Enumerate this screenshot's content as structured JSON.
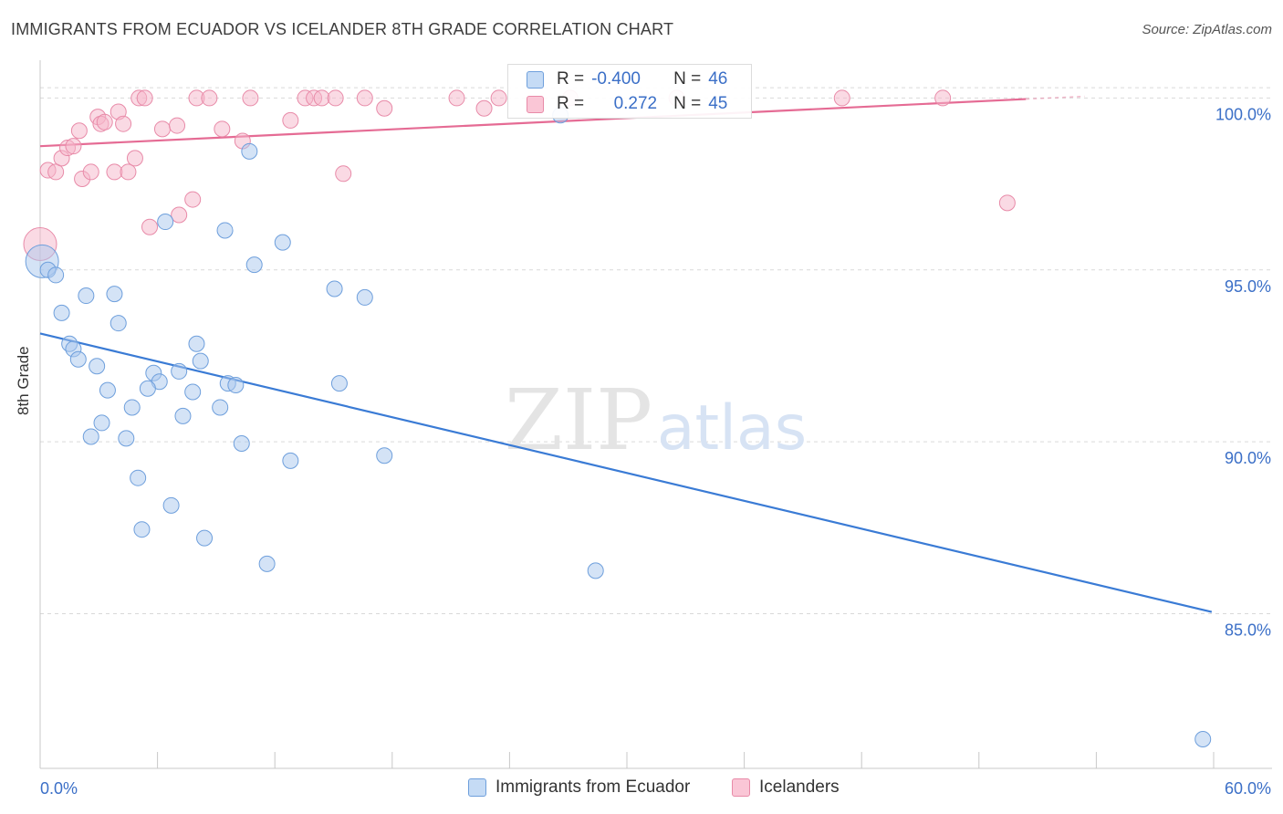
{
  "title": "IMMIGRANTS FROM ECUADOR VS ICELANDER 8TH GRADE CORRELATION CHART",
  "source": "Source: ZipAtlas.com",
  "watermark": {
    "zip": "ZIP",
    "atlas": "atlas"
  },
  "stats": {
    "series1": {
      "r_label": "R =",
      "r_value": "-0.400",
      "n_label": "N =",
      "n_value": "46"
    },
    "series2": {
      "r_label": "R =",
      "r_value": "0.272",
      "n_label": "N =",
      "n_value": "45"
    }
  },
  "legend": {
    "series1": "Immigrants from Ecuador",
    "series2": "Icelanders"
  },
  "colors": {
    "blue_fill": "#a9c7ee",
    "blue_stroke": "#6e9fdc",
    "blue_line": "#3a7bd5",
    "pink_fill": "#f5b6c9",
    "pink_stroke": "#e88aa8",
    "pink_line": "#e56b94",
    "grid": "#d9d9d9",
    "tick_text": "#3b6fc7"
  },
  "chart_data": {
    "type": "scatter",
    "title": "IMMIGRANTS FROM ECUADOR VS ICELANDER 8TH GRADE CORRELATION CHART",
    "xlabel": "",
    "ylabel": "8th Grade",
    "xlim": [
      0,
      60
    ],
    "ylim": [
      80.5,
      101.1
    ],
    "x_tick_labels": [
      "0.0%",
      "60.0%"
    ],
    "y_ticks": [
      85,
      90,
      95,
      100
    ],
    "y_tick_labels": [
      "85.0%",
      "90.0%",
      "95.0%",
      "100.0%"
    ],
    "series": [
      {
        "name": "Immigrants from Ecuador",
        "r": -0.4,
        "n": 46,
        "trend": {
          "x": [
            0,
            59.9
          ],
          "y": [
            93.15,
            85.05
          ]
        },
        "points": [
          {
            "x": 0.1,
            "y": 95.25,
            "big": true
          },
          {
            "x": 0.4,
            "y": 95.0
          },
          {
            "x": 0.8,
            "y": 94.85
          },
          {
            "x": 2.35,
            "y": 94.25
          },
          {
            "x": 3.8,
            "y": 94.3
          },
          {
            "x": 1.1,
            "y": 93.75
          },
          {
            "x": 4.0,
            "y": 93.45
          },
          {
            "x": 1.5,
            "y": 92.85
          },
          {
            "x": 1.7,
            "y": 92.7
          },
          {
            "x": 1.95,
            "y": 92.4
          },
          {
            "x": 2.9,
            "y": 92.2
          },
          {
            "x": 8.0,
            "y": 92.85
          },
          {
            "x": 8.2,
            "y": 92.35
          },
          {
            "x": 5.8,
            "y": 92.0
          },
          {
            "x": 7.1,
            "y": 92.05
          },
          {
            "x": 6.1,
            "y": 91.75
          },
          {
            "x": 5.5,
            "y": 91.55
          },
          {
            "x": 3.45,
            "y": 91.5
          },
          {
            "x": 7.8,
            "y": 91.45
          },
          {
            "x": 9.6,
            "y": 91.7
          },
          {
            "x": 10.0,
            "y": 91.65
          },
          {
            "x": 15.3,
            "y": 91.7
          },
          {
            "x": 4.7,
            "y": 91.0
          },
          {
            "x": 9.2,
            "y": 91.0
          },
          {
            "x": 7.3,
            "y": 90.75
          },
          {
            "x": 3.15,
            "y": 90.55
          },
          {
            "x": 2.6,
            "y": 90.15
          },
          {
            "x": 4.4,
            "y": 90.1
          },
          {
            "x": 10.3,
            "y": 89.95
          },
          {
            "x": 12.8,
            "y": 89.45
          },
          {
            "x": 17.6,
            "y": 89.6
          },
          {
            "x": 5.0,
            "y": 88.95
          },
          {
            "x": 6.7,
            "y": 88.15
          },
          {
            "x": 5.2,
            "y": 87.45
          },
          {
            "x": 8.4,
            "y": 87.2
          },
          {
            "x": 11.6,
            "y": 86.45
          },
          {
            "x": 28.4,
            "y": 86.25
          },
          {
            "x": 6.4,
            "y": 96.4
          },
          {
            "x": 9.45,
            "y": 96.15
          },
          {
            "x": 12.4,
            "y": 95.8
          },
          {
            "x": 10.95,
            "y": 95.15
          },
          {
            "x": 15.05,
            "y": 94.45
          },
          {
            "x": 16.6,
            "y": 94.2
          },
          {
            "x": 10.7,
            "y": 98.45
          },
          {
            "x": 26.6,
            "y": 99.5
          },
          {
            "x": 59.45,
            "y": 81.35
          }
        ]
      },
      {
        "name": "Icelanders",
        "r": 0.272,
        "n": 45,
        "trend": {
          "x": [
            0,
            50.4
          ],
          "y": [
            98.6,
            99.97
          ]
        },
        "points": [
          {
            "x": 0.0,
            "y": 95.75,
            "big": true
          },
          {
            "x": 0.4,
            "y": 97.9
          },
          {
            "x": 0.8,
            "y": 97.85
          },
          {
            "x": 1.1,
            "y": 98.25
          },
          {
            "x": 1.4,
            "y": 98.55
          },
          {
            "x": 1.7,
            "y": 98.6
          },
          {
            "x": 2.0,
            "y": 99.05
          },
          {
            "x": 2.15,
            "y": 97.65
          },
          {
            "x": 2.6,
            "y": 97.85
          },
          {
            "x": 2.95,
            "y": 99.45
          },
          {
            "x": 3.1,
            "y": 99.25
          },
          {
            "x": 3.3,
            "y": 99.3
          },
          {
            "x": 3.8,
            "y": 97.85
          },
          {
            "x": 4.0,
            "y": 99.6
          },
          {
            "x": 4.25,
            "y": 99.25
          },
          {
            "x": 4.5,
            "y": 97.85
          },
          {
            "x": 4.85,
            "y": 98.25
          },
          {
            "x": 5.05,
            "y": 100.0
          },
          {
            "x": 5.35,
            "y": 100.0
          },
          {
            "x": 5.6,
            "y": 96.25
          },
          {
            "x": 6.25,
            "y": 99.1
          },
          {
            "x": 7.0,
            "y": 99.2
          },
          {
            "x": 7.1,
            "y": 96.6
          },
          {
            "x": 7.8,
            "y": 97.05
          },
          {
            "x": 8.0,
            "y": 100.0
          },
          {
            "x": 8.65,
            "y": 100.0
          },
          {
            "x": 9.3,
            "y": 99.1
          },
          {
            "x": 10.35,
            "y": 98.75
          },
          {
            "x": 10.75,
            "y": 100.0
          },
          {
            "x": 12.8,
            "y": 99.35
          },
          {
            "x": 13.55,
            "y": 100.0
          },
          {
            "x": 14.0,
            "y": 100.0
          },
          {
            "x": 14.4,
            "y": 100.0
          },
          {
            "x": 15.1,
            "y": 100.0
          },
          {
            "x": 15.5,
            "y": 97.8
          },
          {
            "x": 16.6,
            "y": 100.0
          },
          {
            "x": 17.6,
            "y": 99.7
          },
          {
            "x": 21.3,
            "y": 100.0
          },
          {
            "x": 22.7,
            "y": 99.7
          },
          {
            "x": 23.45,
            "y": 100.0
          },
          {
            "x": 27.1,
            "y": 100.0
          },
          {
            "x": 32.55,
            "y": 100.0
          },
          {
            "x": 41.0,
            "y": 100.0
          },
          {
            "x": 46.15,
            "y": 100.0
          },
          {
            "x": 49.45,
            "y": 96.95
          }
        ]
      }
    ]
  }
}
